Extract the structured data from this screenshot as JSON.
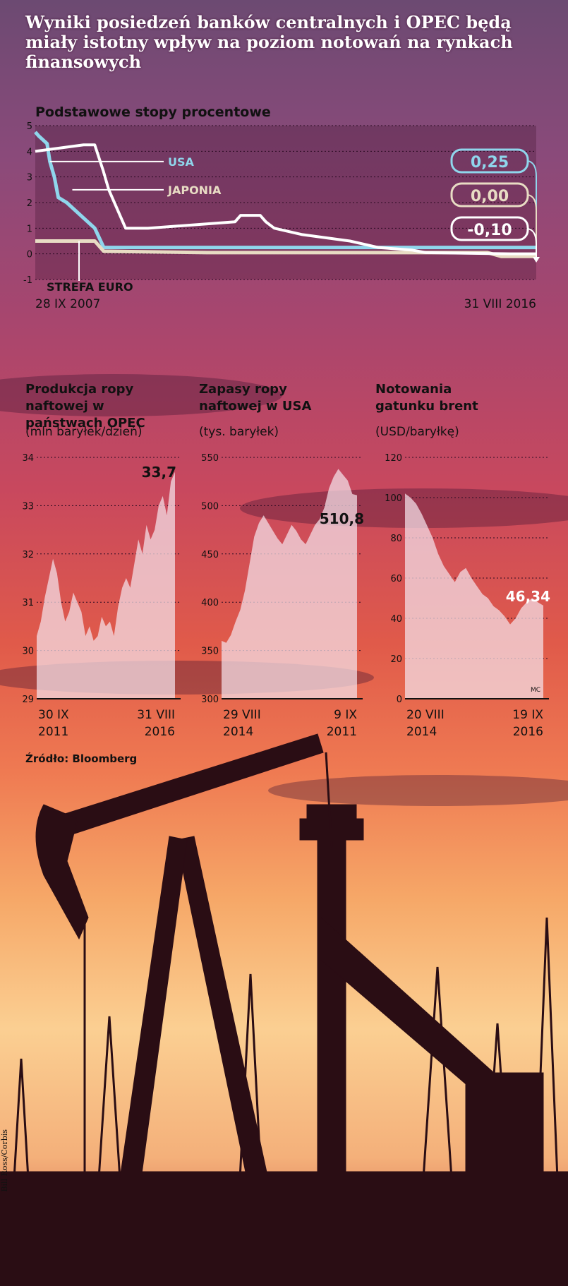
{
  "title": "Wyniki posiedzeń banków centralnych i OPEC będą miały istotny wpływ na poziom notowań na rynkach finansowych",
  "source": "Źródło: Bloomberg",
  "photo_credit": "Bill Ross/Corbis",
  "initials": "MC",
  "colors": {
    "usa": "#e8dcc4",
    "japan": "#8fd6ec",
    "euro": "#ffffff",
    "area_fill": "#f4e2ea",
    "text_dark": "#111111",
    "grid": "#5a2a46"
  },
  "chart_data": [
    {
      "type": "line",
      "title": "Podstawowe stopy procentowe",
      "x_start_label": "28 IX 2007",
      "x_end_label": "31 VIII 2016",
      "x_domain": [
        2007.74,
        2016.67
      ],
      "ylim": [
        -1,
        5
      ],
      "yticks": [
        "-1",
        "0",
        "1",
        "2",
        "3",
        "4",
        "5"
      ],
      "grid": true,
      "series": [
        {
          "name": "USA",
          "end_label": "0,25",
          "x": [
            2007.74,
            2007.8,
            2007.95,
            2008.0,
            2008.08,
            2008.15,
            2008.3,
            2008.8,
            2008.96,
            2016.0,
            2016.67
          ],
          "y": [
            4.75,
            4.6,
            4.3,
            3.6,
            3.0,
            2.2,
            2.0,
            1.0,
            0.25,
            0.25,
            0.25
          ]
        },
        {
          "name": "JAPONIA",
          "end_label": "-0,10",
          "x": [
            2007.74,
            2008.8,
            2008.96,
            2010.8,
            2015.8,
            2016.05,
            2016.67
          ],
          "y": [
            0.5,
            0.5,
            0.1,
            0.05,
            0.05,
            -0.1,
            -0.1
          ]
        },
        {
          "name": "STREFA EURO",
          "end_label": "0,00",
          "x": [
            2007.74,
            2008.6,
            2008.8,
            2008.95,
            2009.05,
            2009.25,
            2009.35,
            2009.75,
            2011.3,
            2011.4,
            2011.75,
            2011.85,
            2012.0,
            2012.5,
            2013.35,
            2013.85,
            2014.45,
            2014.7,
            2016.2,
            2016.67
          ],
          "y": [
            4.0,
            4.25,
            4.25,
            3.25,
            2.5,
            1.5,
            1.0,
            1.0,
            1.25,
            1.5,
            1.5,
            1.25,
            1.0,
            0.75,
            0.5,
            0.25,
            0.15,
            0.05,
            0.0,
            0.0
          ]
        }
      ]
    },
    {
      "type": "area",
      "title": "Produkcja ropy naftowej w państwach OPEC",
      "unit": "(mln baryłek/dzień)",
      "x_start_label": "30 IX 2011",
      "x_end_label": "31 VIII 2016",
      "ylim": [
        29,
        34
      ],
      "yticks": [
        "29",
        "30",
        "31",
        "32",
        "33",
        "34"
      ],
      "last_value_label": "33,7",
      "values": [
        30.3,
        30.6,
        31.1,
        31.5,
        31.9,
        31.6,
        31.0,
        30.6,
        30.8,
        31.2,
        31.0,
        30.8,
        30.3,
        30.5,
        30.2,
        30.3,
        30.7,
        30.5,
        30.6,
        30.3,
        30.9,
        31.3,
        31.5,
        31.3,
        31.8,
        32.3,
        32.0,
        32.6,
        32.3,
        32.5,
        33.0,
        33.2,
        32.8,
        33.5,
        33.7
      ]
    },
    {
      "type": "area",
      "title": "Zapasy ropy naftowej w USA",
      "unit": "(tys. baryłek)",
      "x_start_label": "29 VIII 2014",
      "x_end_label": "9 IX 2011",
      "ylim": [
        300,
        550
      ],
      "yticks": [
        "300",
        "350",
        "400",
        "450",
        "500",
        "550"
      ],
      "last_value_label": "510,8",
      "values": [
        360,
        358,
        366,
        380,
        392,
        412,
        440,
        468,
        482,
        490,
        482,
        474,
        466,
        460,
        470,
        480,
        474,
        465,
        460,
        470,
        480,
        486,
        498,
        518,
        530,
        538,
        532,
        526,
        512,
        510.8
      ]
    },
    {
      "type": "area",
      "title": "Notowania gatunku brent",
      "unit": "(USD/baryłkę)",
      "x_start_label": "20 VIII 2014",
      "x_end_label": "19 IX 2016",
      "ylim": [
        0,
        120
      ],
      "yticks": [
        "0",
        "20",
        "40",
        "60",
        "80",
        "100",
        "120"
      ],
      "last_value_label": "46,34",
      "values": [
        102,
        100,
        97,
        92,
        86,
        80,
        72,
        66,
        62,
        58,
        63,
        65,
        60,
        56,
        52,
        50,
        46,
        44,
        41,
        37,
        40,
        45,
        48,
        50,
        48,
        46.34
      ]
    }
  ]
}
